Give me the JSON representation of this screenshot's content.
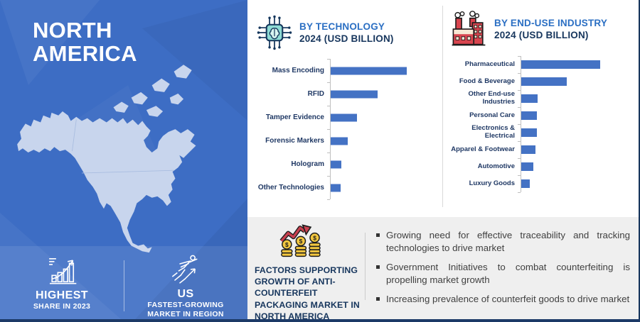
{
  "region_panel": {
    "title_line1": "NORTH",
    "title_line2": "AMERICA",
    "badges": [
      {
        "icon": "growth-bars-icon",
        "title": "HIGHEST",
        "subtitle": "SHARE IN 2023"
      },
      {
        "icon": "flying-person-icon",
        "title": "US",
        "subtitle": "FASTEST-GROWING MARKET IN REGION"
      }
    ]
  },
  "chart_data": [
    {
      "type": "bar",
      "orientation": "horizontal",
      "icon": "circuit-chip-icon",
      "title": "BY TECHNOLOGY",
      "subtitle": "2024 (USD BILLION)",
      "categories": [
        "Mass Encoding",
        "RFID",
        "Tamper Evidence",
        "Forensic Markers",
        "Hologram",
        "Other Technologies"
      ],
      "values": [
        100,
        62,
        35,
        22,
        14,
        13
      ],
      "value_scale": "relative bar length, longest = 100 (no numeric value labels shown)",
      "xlim": [
        0,
        145
      ],
      "grid": false,
      "bar_color": "#4472c4"
    },
    {
      "type": "bar",
      "orientation": "horizontal",
      "icon": "factory-icon",
      "title": "BY END-USE INDUSTRY",
      "subtitle": "2024 (USD BILLION)",
      "categories": [
        "Pharmaceutical",
        "Food & Beverage",
        "Other End-use Industries",
        "Personal Care",
        "Electronics & Electrical",
        "Apparel & Footwear",
        "Automotive",
        "Luxury Goods"
      ],
      "values": [
        100,
        58,
        21,
        20,
        20,
        18,
        15,
        11
      ],
      "value_scale": "relative bar length, longest = 100 (no numeric value labels shown)",
      "xlim": [
        0,
        145
      ],
      "grid": false,
      "bar_color": "#4472c4"
    }
  ],
  "factors": {
    "icon": "coins-growth-icon",
    "heading": "FACTORS SUPPORTING GROWTH OF  ANTI-COUNTERFEIT PACKAGING MARKET IN NORTH AMERICA",
    "bullets": [
      "Growing need for effective traceability and tracking technologies to drive market",
      "Government Initiatives to combat counterfeiting is propelling market growth",
      "Increasing prevalence of counterfeit goods to drive market"
    ]
  },
  "colors": {
    "panel_blue": "#3d6dc4",
    "band_blue": "#4d79c6",
    "map_fill": "#c8d5ed",
    "bar_blue": "#4472c4",
    "header_blue": "#2b6fc3",
    "navy_text": "#17365d",
    "section_gray": "#efefef",
    "footer_navy": "#1c3a67",
    "axis_gray": "#bfbfbf",
    "bullet_text": "#404040",
    "accent_red": "#c8404f",
    "coin_gold": "#f3c73f",
    "icon_teal": "#8edbd4"
  }
}
